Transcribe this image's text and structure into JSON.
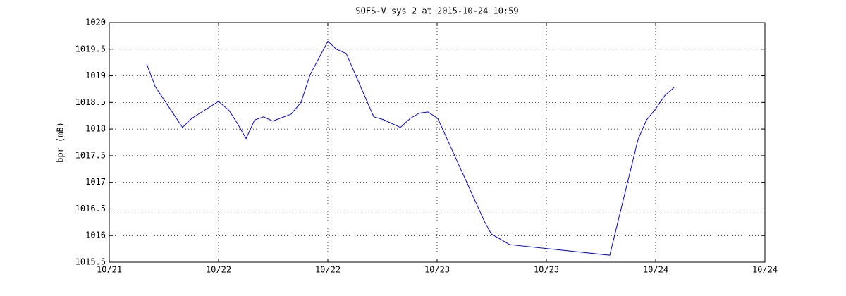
{
  "chart_data": {
    "type": "line",
    "title": "SOFS-V sys 2 at 2015-10-24 10:59",
    "y_label": "bpr (mB)",
    "x": [
      21.171,
      21.21,
      21.335,
      21.377,
      21.5,
      21.548,
      21.587,
      21.626,
      21.665,
      21.706,
      21.748,
      21.832,
      21.877,
      21.919,
      22.0,
      22.039,
      22.084,
      22.21,
      22.252,
      22.332,
      22.377,
      22.419,
      22.458,
      22.503,
      22.716,
      22.748,
      22.832,
      23.29,
      23.419,
      23.458,
      23.5,
      23.542,
      23.584
    ],
    "series": [
      {
        "color": "#0000ff",
        "values": [
          1019.22,
          1018.8,
          1018.03,
          1018.2,
          1018.52,
          1018.35,
          1018.1,
          1017.82,
          1018.17,
          1018.23,
          1018.15,
          1018.28,
          1018.5,
          1019.02,
          1019.65,
          1019.5,
          1019.42,
          1018.23,
          1018.18,
          1018.03,
          1018.2,
          1018.3,
          1018.32,
          1018.2,
          1016.27,
          1016.03,
          1015.83,
          1015.63,
          1017.8,
          1018.17,
          1018.38,
          1018.63,
          1018.78
        ]
      }
    ],
    "xlim": [
      21,
      24
    ],
    "xticks": [
      {
        "value": 21,
        "label": "10/21"
      },
      {
        "value": 21.5,
        "label": "10/22"
      },
      {
        "value": 22,
        "label": "10/22"
      },
      {
        "value": 22.5,
        "label": "10/23"
      },
      {
        "value": 23,
        "label": "10/23"
      },
      {
        "value": 23.5,
        "label": "10/24"
      },
      {
        "value": 24,
        "label": "10/24"
      }
    ],
    "ylim": [
      1015.5,
      1020
    ],
    "yticks": [
      1015.5,
      1016,
      1016.5,
      1017,
      1017.5,
      1018,
      1018.5,
      1019,
      1019.5,
      1020
    ],
    "grid": true
  }
}
